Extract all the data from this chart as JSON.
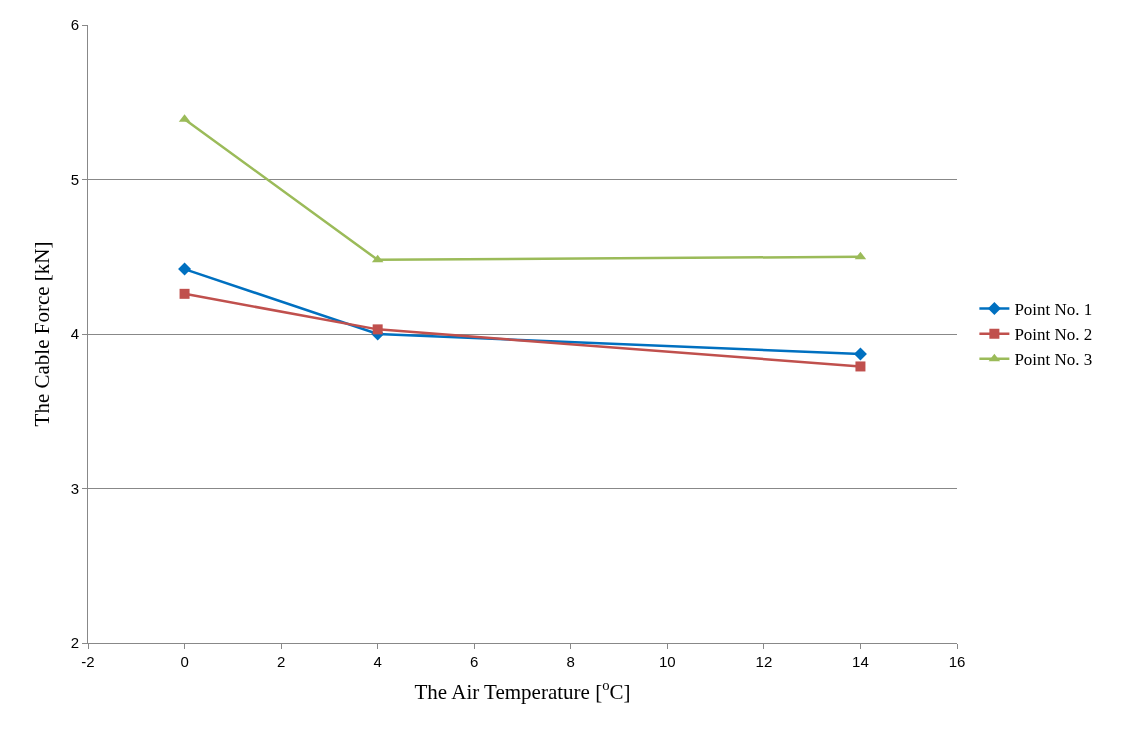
{
  "chart_data": {
    "type": "line",
    "xlabel": "The Air Temperature [$^{o}$C]",
    "ylabel": "The Cable Force [kN]",
    "x": [
      0,
      4,
      14
    ],
    "series": [
      {
        "name": "Point No. 1",
        "color": "#0070c0",
        "marker": "diamond",
        "values": [
          4.42,
          4.0,
          3.87
        ]
      },
      {
        "name": "Point No. 2",
        "color": "#c0504d",
        "marker": "square",
        "values": [
          4.26,
          4.03,
          3.79
        ]
      },
      {
        "name": "Point No. 3",
        "color": "#9bbb59",
        "marker": "triangle",
        "values": [
          5.39,
          4.48,
          4.5
        ]
      }
    ],
    "xlim": [
      -2,
      16
    ],
    "xticks": [
      -2,
      0,
      2,
      4,
      6,
      8,
      10,
      12,
      14,
      16
    ],
    "ylim": [
      2,
      6
    ],
    "yticks": [
      2,
      3,
      4,
      5,
      6
    ],
    "grid": "y",
    "legend": "right",
    "line_style": "solid"
  }
}
